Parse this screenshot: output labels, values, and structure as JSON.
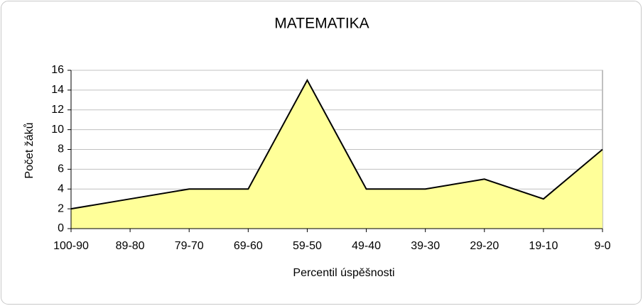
{
  "chart_data": {
    "type": "area",
    "title": "MATEMATIKA",
    "x_label": "Percentil úspěšnosti",
    "y_label": "Počet žáků",
    "categories": [
      "100-90",
      "89-80",
      "79-70",
      "69-60",
      "59-50",
      "49-40",
      "39-30",
      "29-20",
      "19-10",
      "9-0"
    ],
    "values": [
      2,
      3,
      4,
      4,
      15,
      4,
      4,
      5,
      3,
      8
    ],
    "color": "#ffff99",
    "line_color": "#000000",
    "ylim": [
      0,
      16
    ],
    "yticks": [
      0,
      2,
      4,
      6,
      8,
      10,
      12,
      14,
      16
    ],
    "grid": true
  }
}
